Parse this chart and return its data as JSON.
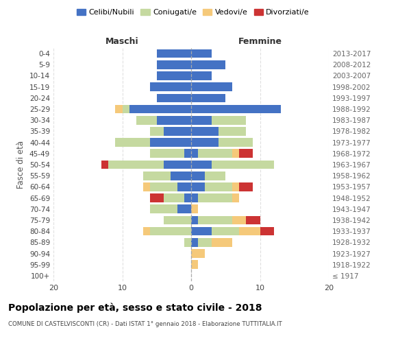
{
  "age_groups": [
    "100+",
    "95-99",
    "90-94",
    "85-89",
    "80-84",
    "75-79",
    "70-74",
    "65-69",
    "60-64",
    "55-59",
    "50-54",
    "45-49",
    "40-44",
    "35-39",
    "30-34",
    "25-29",
    "20-24",
    "15-19",
    "10-14",
    "5-9",
    "0-4"
  ],
  "birth_years": [
    "≤ 1917",
    "1918-1922",
    "1923-1927",
    "1928-1932",
    "1933-1937",
    "1938-1942",
    "1943-1947",
    "1948-1952",
    "1953-1957",
    "1958-1962",
    "1963-1967",
    "1968-1972",
    "1973-1977",
    "1978-1982",
    "1983-1987",
    "1988-1992",
    "1993-1997",
    "1998-2002",
    "2003-2007",
    "2008-2012",
    "2013-2017"
  ],
  "colors": {
    "celibi": "#4472C4",
    "coniugati": "#C5D9A0",
    "vedovi": "#F5C97A",
    "divorziati": "#CC3333"
  },
  "maschi": {
    "celibi": [
      0,
      0,
      0,
      0,
      0,
      0,
      2,
      1,
      2,
      3,
      4,
      1,
      6,
      4,
      5,
      9,
      5,
      6,
      5,
      5,
      5
    ],
    "coniugati": [
      0,
      0,
      0,
      1,
      6,
      4,
      4,
      3,
      4,
      4,
      8,
      5,
      5,
      2,
      3,
      1,
      0,
      0,
      0,
      0,
      0
    ],
    "vedovi": [
      0,
      0,
      0,
      0,
      1,
      0,
      0,
      0,
      1,
      0,
      0,
      0,
      0,
      0,
      0,
      1,
      0,
      0,
      0,
      0,
      0
    ],
    "divorziati": [
      0,
      0,
      0,
      0,
      0,
      0,
      0,
      2,
      0,
      0,
      1,
      0,
      0,
      0,
      0,
      0,
      0,
      0,
      0,
      0,
      0
    ]
  },
  "femmine": {
    "celibi": [
      0,
      0,
      0,
      1,
      3,
      1,
      0,
      1,
      2,
      2,
      3,
      1,
      4,
      4,
      3,
      13,
      5,
      6,
      3,
      5,
      3
    ],
    "coniugati": [
      0,
      0,
      0,
      2,
      4,
      5,
      0,
      5,
      4,
      3,
      9,
      5,
      5,
      4,
      5,
      0,
      0,
      0,
      0,
      0,
      0
    ],
    "vedovi": [
      0,
      1,
      2,
      3,
      3,
      2,
      1,
      1,
      1,
      0,
      0,
      1,
      0,
      0,
      0,
      0,
      0,
      0,
      0,
      0,
      0
    ],
    "divorziati": [
      0,
      0,
      0,
      0,
      2,
      2,
      0,
      0,
      2,
      0,
      0,
      2,
      0,
      0,
      0,
      0,
      0,
      0,
      0,
      0,
      0
    ]
  },
  "xlim": 20,
  "title": "Popolazione per età, sesso e stato civile - 2018",
  "subtitle": "COMUNE DI CASTELVISCONTI (CR) - Dati ISTAT 1° gennaio 2018 - Elaborazione TUTTITALIA.IT",
  "ylabel_left": "Fasce di età",
  "xlabel_maschi": "Maschi",
  "xlabel_femmine": "Femmine"
}
